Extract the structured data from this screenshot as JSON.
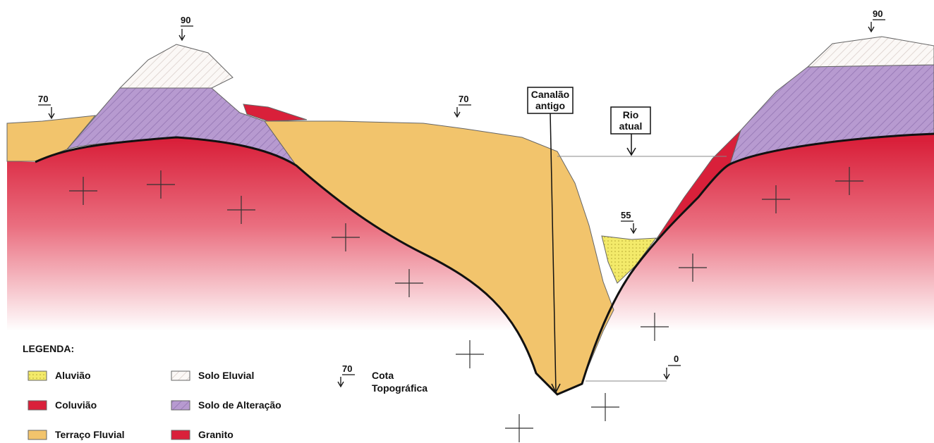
{
  "markers": [
    "90",
    "70",
    "70",
    "90",
    "55",
    "0"
  ],
  "callouts": [
    {
      "lines": [
        "Canalão",
        "antigo"
      ]
    },
    {
      "lines": [
        "Rio",
        "atual"
      ]
    }
  ],
  "legend": {
    "title": "LEGENDA:",
    "items": [
      "Aluvião",
      "Coluvião",
      "Terraço Fluvial",
      "Solo Eluvial",
      "Solo de Alteração",
      "Granito"
    ],
    "elevation_key": {
      "label": "70",
      "lines": [
        "Cota",
        "Topográfica"
      ]
    }
  }
}
